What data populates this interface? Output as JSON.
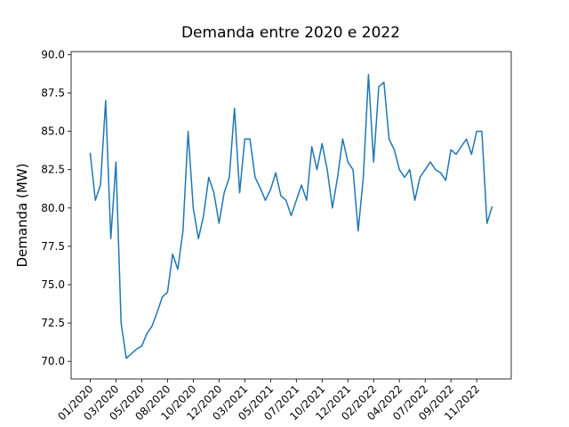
{
  "chart_data": {
    "type": "line",
    "title": "Demanda entre 2020 e 2022",
    "ylabel": "Demanda (MW)",
    "categories": [
      "01/2020",
      null,
      null,
      null,
      null,
      "03/2020",
      null,
      null,
      null,
      null,
      "05/2020",
      null,
      null,
      null,
      null,
      "08/2020",
      null,
      null,
      null,
      null,
      "10/2020",
      null,
      null,
      null,
      null,
      "12/2020",
      null,
      null,
      null,
      null,
      "03/2021",
      null,
      null,
      null,
      null,
      "05/2021",
      null,
      null,
      null,
      null,
      "07/2021",
      null,
      null,
      null,
      null,
      "10/2021",
      null,
      null,
      null,
      null,
      "12/2021",
      null,
      null,
      null,
      null,
      "02/2022",
      null,
      null,
      null,
      null,
      "04/2022",
      null,
      null,
      null,
      null,
      "07/2022",
      null,
      null,
      null,
      null,
      "09/2022",
      null,
      null,
      null,
      null,
      "11/2022",
      null,
      null,
      null
    ],
    "series": [
      {
        "color": "#1f77b4",
        "values": [
          83.6,
          80.5,
          81.5,
          87,
          78,
          83,
          72.5,
          70.2,
          70.5,
          70.8,
          71,
          71.8,
          72.3,
          73.2,
          74.2,
          74.5,
          77,
          76,
          78.5,
          85,
          80,
          78,
          79.5,
          82,
          81,
          79,
          81,
          82,
          86.5,
          81,
          84.5,
          84.5,
          82,
          81.3,
          80.5,
          81.2,
          82.3,
          80.8,
          80.5,
          79.5,
          80.5,
          81.5,
          80.5,
          84,
          82.5,
          84.2,
          82.5,
          80,
          82,
          84.5,
          83,
          82.5,
          78.5,
          82,
          88.7,
          83,
          87.9,
          88.2,
          84.5,
          83.8,
          82.5,
          82,
          82.5,
          80.5,
          82,
          82.5,
          83,
          82.5,
          82.3,
          81.8,
          83.8,
          83.5,
          84,
          84.5,
          83.5,
          85,
          85,
          79,
          80.1
        ]
      }
    ],
    "ylim": [
      68.85,
      90.2
    ],
    "yticks": [
      {
        "value": 70,
        "label": "70.0"
      },
      {
        "value": 72.5,
        "label": "72.5"
      },
      {
        "value": 75,
        "label": "75.0"
      },
      {
        "value": 77.5,
        "label": "77.5"
      },
      {
        "value": 80,
        "label": "80.0"
      },
      {
        "value": 82.5,
        "label": "82.5"
      },
      {
        "value": 85,
        "label": "85.0"
      },
      {
        "value": 87.5,
        "label": "87.5"
      },
      {
        "value": 90,
        "label": "90.0"
      }
    ]
  }
}
